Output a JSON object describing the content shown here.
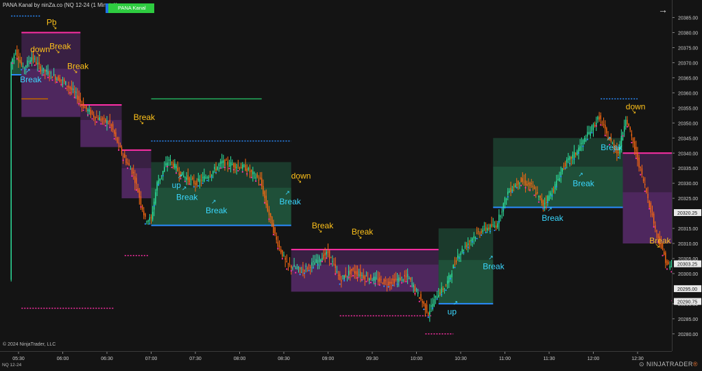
{
  "header": {
    "title": "PANA Kanal by ninZa.co (NQ 12-24 (1 Minute))",
    "indicator_tag": "PANA Kanal",
    "copyright": "© 2024 NinjaTrader, LLC",
    "instrument": "NQ 12-24",
    "logo_prefix": "⊙",
    "logo_text": "NINJATRADER",
    "logo_mark": "®"
  },
  "chart_data": {
    "type": "candlestick",
    "x_ticks": [
      "05:30",
      "06:00",
      "06:30",
      "07:00",
      "07:30",
      "08:00",
      "08:30",
      "09:00",
      "09:30",
      "10:00",
      "10:30",
      "11:00",
      "11:30",
      "12:00",
      "12:30"
    ],
    "y_ticks": [
      "20385.00",
      "20380.00",
      "20375.00",
      "20370.00",
      "20365.00",
      "20360.00",
      "20355.00",
      "20350.00",
      "20345.00",
      "20340.00",
      "20335.00",
      "20330.00",
      "20325.00",
      "20315.00",
      "20310.00",
      "20305.00",
      "20300.00",
      "20290.00",
      "20285.00",
      "20280.00"
    ],
    "ylim": [
      20277,
      20389
    ],
    "price_markers": [
      {
        "label": "20320.25",
        "value": 20320.25
      },
      {
        "label": "20303.25",
        "value": 20303.25
      },
      {
        "label": "20295.00",
        "value": 20295.0
      },
      {
        "label": "20290.75",
        "value": 20290.75
      }
    ],
    "colors": {
      "bull": "#2ee6a0",
      "bear": "#ff6a10",
      "up_channel": "#2f9e6a",
      "down_channel": "#9c3fbf",
      "resistance": "#ff2fa6",
      "support": "#2a8cff",
      "label_bull": "#3ad8ff",
      "label_bear": "#ffc21a"
    },
    "annotations": [
      {
        "text": "Pb",
        "x": "05:49",
        "y": 20382.5,
        "color": "bear"
      },
      {
        "text": "down",
        "x": "05:38",
        "y": 20373.5,
        "color": "bear"
      },
      {
        "text": "Break",
        "x": "05:51",
        "y": 20374.5,
        "color": "bear"
      },
      {
        "text": "Break",
        "x": "06:03",
        "y": 20368.0,
        "color": "bear"
      },
      {
        "text": "Break",
        "x": "06:48",
        "y": 20351.0,
        "color": "bear"
      },
      {
        "text": "Break",
        "x": "05:31",
        "y": 20363.5,
        "color": "bull"
      },
      {
        "text": "up",
        "x": "07:14",
        "y": 20328.5,
        "color": "bull"
      },
      {
        "text": "Break",
        "x": "07:17",
        "y": 20324.5,
        "color": "bull"
      },
      {
        "text": "Break",
        "x": "07:37",
        "y": 20320.0,
        "color": "bull"
      },
      {
        "text": "down",
        "x": "08:35",
        "y": 20331.5,
        "color": "bear"
      },
      {
        "text": "Break",
        "x": "08:27",
        "y": 20323.0,
        "color": "bull"
      },
      {
        "text": "Break",
        "x": "08:49",
        "y": 20315.0,
        "color": "bear"
      },
      {
        "text": "Break",
        "x": "09:16",
        "y": 20313.0,
        "color": "bear"
      },
      {
        "text": "up",
        "x": "10:21",
        "y": 20286.5,
        "color": "bull"
      },
      {
        "text": "Break",
        "x": "10:45",
        "y": 20301.5,
        "color": "bull"
      },
      {
        "text": "Break",
        "x": "11:25",
        "y": 20317.5,
        "color": "bull"
      },
      {
        "text": "Break",
        "x": "11:46",
        "y": 20329.0,
        "color": "bull"
      },
      {
        "text": "Break",
        "x": "12:05",
        "y": 20341.0,
        "color": "bull"
      },
      {
        "text": "down",
        "x": "12:22",
        "y": 20354.5,
        "color": "bear"
      },
      {
        "text": "Break",
        "x": "12:38",
        "y": 20310.0,
        "color": "bear"
      }
    ]
  }
}
